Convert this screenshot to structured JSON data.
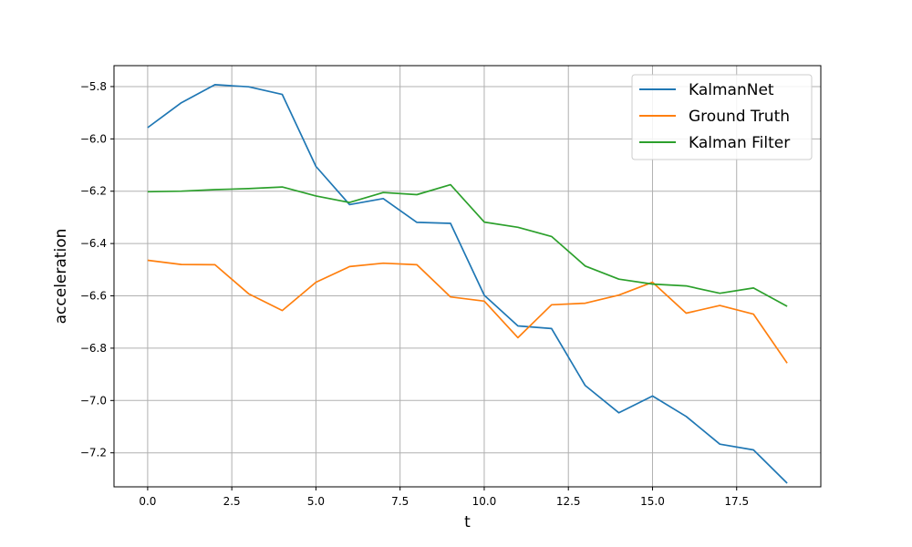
{
  "chart_data": {
    "type": "line",
    "title": "",
    "xlabel": "t",
    "ylabel": "acceleration",
    "xlim": [
      -1.0,
      20.0
    ],
    "ylim": [
      -7.33,
      -5.72
    ],
    "x_ticks": [
      0.0,
      2.5,
      5.0,
      7.5,
      10.0,
      12.5,
      15.0,
      17.5
    ],
    "x_tick_labels": [
      "0.0",
      "2.5",
      "5.0",
      "7.5",
      "10.0",
      "12.5",
      "15.0",
      "17.5"
    ],
    "y_ticks": [
      -7.2,
      -7.0,
      -6.8,
      -6.6,
      -6.4,
      -6.2,
      -6.0,
      -5.8
    ],
    "y_tick_labels": [
      "−7.2",
      "−7.0",
      "−6.8",
      "−6.6",
      "−6.4",
      "−6.2",
      "−6.0",
      "−5.8"
    ],
    "grid": true,
    "legend_position": "top-right",
    "x": [
      0,
      1,
      2,
      3,
      4,
      5,
      6,
      7,
      8,
      9,
      10,
      11,
      12,
      13,
      14,
      15,
      16,
      17,
      18,
      19
    ],
    "series": [
      {
        "name": "KalmanNet",
        "color": "#1f77b4",
        "values": [
          -5.957,
          -5.862,
          -5.793,
          -5.801,
          -5.83,
          -6.105,
          -6.251,
          -6.228,
          -6.319,
          -6.323,
          -6.598,
          -6.715,
          -6.725,
          -6.943,
          -7.047,
          -6.983,
          -7.061,
          -7.167,
          -7.189,
          -7.316
        ]
      },
      {
        "name": "Ground Truth",
        "color": "#ff7f0e",
        "values": [
          -6.464,
          -6.48,
          -6.481,
          -6.592,
          -6.656,
          -6.548,
          -6.488,
          -6.475,
          -6.481,
          -6.604,
          -6.62,
          -6.76,
          -6.634,
          -6.628,
          -6.597,
          -6.548,
          -6.666,
          -6.637,
          -6.67,
          -6.857
        ]
      },
      {
        "name": "Kalman Filter",
        "color": "#2ca02c",
        "values": [
          -6.202,
          -6.2,
          -6.194,
          -6.19,
          -6.184,
          -6.218,
          -6.243,
          -6.205,
          -6.213,
          -6.175,
          -6.318,
          -6.338,
          -6.373,
          -6.486,
          -6.536,
          -6.555,
          -6.562,
          -6.59,
          -6.57,
          -6.64
        ]
      }
    ]
  }
}
